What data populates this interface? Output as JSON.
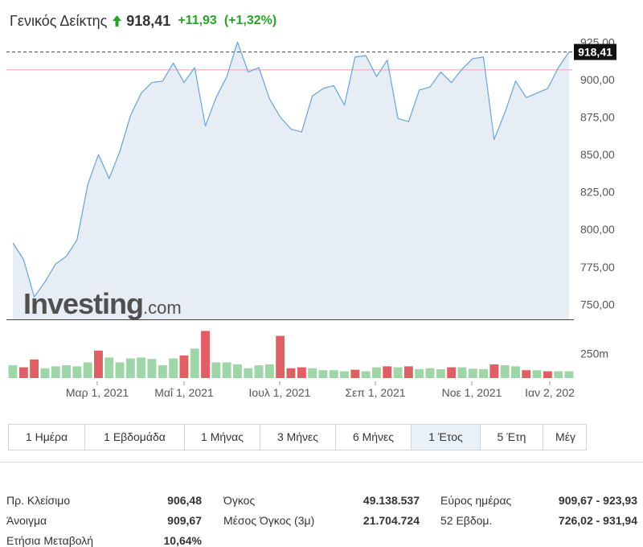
{
  "header": {
    "index_name": "Γενικός Δείκτης",
    "last": "918,41",
    "change": "+11,93",
    "change_pct": "(+1,32%)",
    "arrow_icon": "up-arrow-icon",
    "up_color": "#2ca02c"
  },
  "chart_data": {
    "type": "area",
    "title": "",
    "xlabel": "",
    "ylabel": "",
    "ylim": [
      740,
      930
    ],
    "yticks": [
      "925,00",
      "900,00",
      "875,00",
      "850,00",
      "825,00",
      "800,00",
      "775,00",
      "750,00"
    ],
    "ytick_values": [
      925,
      900,
      875,
      850,
      825,
      800,
      775,
      750
    ],
    "xticks": [
      "Μαρ 1, 2021",
      "Μαΐ 1, 2021",
      "Ιουλ 1, 2021",
      "Σεπ 1, 2021",
      "Νοε 1, 2021",
      "Ιαν 2, 202"
    ],
    "last_value_label": "918,41",
    "last_value": 918.41,
    "prev_close": 906.48,
    "grid": false,
    "watermark": "Investing.com",
    "series": [
      {
        "values": [
          791,
          780,
          755,
          765,
          777,
          782,
          793,
          830,
          850,
          834,
          852,
          876,
          891,
          898,
          899,
          911,
          898,
          908,
          869,
          888,
          902,
          925,
          905,
          908,
          887,
          875,
          867,
          865,
          889,
          894,
          896,
          883,
          915,
          916,
          902,
          913,
          874,
          872,
          893,
          895,
          905,
          898,
          907,
          914,
          915,
          860,
          878,
          899,
          888,
          891,
          894,
          908,
          918.41
        ],
        "color": "#6aa3d5",
        "fill": "#e6edf5"
      }
    ],
    "volume": {
      "label": "250m",
      "label_value": 250,
      "max": 500,
      "values": [
        130,
        110,
        190,
        100,
        120,
        130,
        120,
        160,
        280,
        210,
        160,
        200,
        210,
        195,
        130,
        200,
        230,
        300,
        480,
        160,
        160,
        140,
        100,
        130,
        140,
        430,
        100,
        110,
        100,
        80,
        80,
        70,
        85,
        70,
        110,
        120,
        110,
        120,
        90,
        100,
        90,
        110,
        110,
        95,
        90,
        140,
        130,
        120,
        80,
        80,
        70,
        70,
        70
      ],
      "directions": [
        "up",
        "down",
        "down",
        "up",
        "up",
        "up",
        "up",
        "up",
        "down",
        "up",
        "up",
        "up",
        "up",
        "up",
        "up",
        "up",
        "down",
        "up",
        "down",
        "up",
        "up",
        "up",
        "up",
        "up",
        "up",
        "down",
        "down",
        "down",
        "up",
        "up",
        "up",
        "up",
        "down",
        "up",
        "up",
        "down",
        "up",
        "down",
        "up",
        "up",
        "up",
        "down",
        "up",
        "up",
        "up",
        "down",
        "up",
        "up",
        "down",
        "up",
        "down",
        "up",
        "up"
      ],
      "up_color": "#9fd6a7",
      "down_color": "#de5f64"
    }
  },
  "timeframe_tabs": [
    {
      "label": "1 Ημέρα",
      "active": false
    },
    {
      "label": "1 Εβδομάδα",
      "active": false
    },
    {
      "label": "1 Μήνας",
      "active": false
    },
    {
      "label": "3 Μήνες",
      "active": false
    },
    {
      "label": "6 Μήνες",
      "active": false
    },
    {
      "label": "1 Έτος",
      "active": true
    },
    {
      "label": "5 Έτη",
      "active": false
    },
    {
      "label": "Μέγ",
      "active": false
    }
  ],
  "stats": {
    "prev_close": {
      "label": "Πρ. Κλείσιμο",
      "value": "906,48"
    },
    "open": {
      "label": "Άνοιγμα",
      "value": "909,67"
    },
    "annual_change": {
      "label": "Ετήσια Μεταβολή",
      "value": "10,64%"
    },
    "volume": {
      "label": "Όγκος",
      "value": "49.138.537"
    },
    "avg_volume": {
      "label": "Μέσος Όγκος (3μ)",
      "value": "21.704.724"
    },
    "day_range": {
      "label": "Εύρος ημέρας",
      "value": "909,67 - 923,93"
    },
    "week52": {
      "label": "52 Εβδομ.",
      "value": "726,02 - 931,94"
    }
  }
}
